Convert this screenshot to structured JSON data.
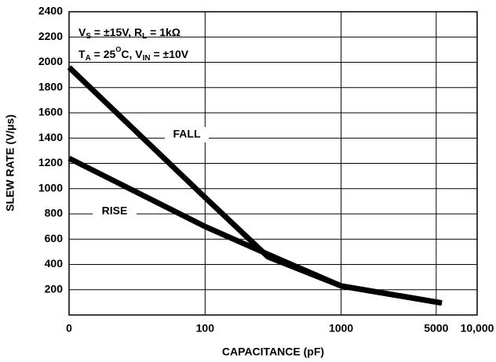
{
  "chart_data": {
    "type": "line",
    "x_label": "CAPACITANCE (pF)",
    "y_label": "SLEW RATE (V/µs)",
    "annotations": [
      [
        "V",
        "S",
        " = ±15V, R",
        "L",
        " = 1kΩ"
      ],
      [
        "T",
        "A",
        " = 25",
        "O",
        "C, V",
        "IN",
        " = ±10V"
      ]
    ],
    "x": [
      10,
      100,
      290,
      1000,
      5500
    ],
    "series": [
      {
        "name": "FALL",
        "color": "#000000",
        "values": [
          1960,
          930,
          460,
          230,
          95
        ]
      },
      {
        "name": "RISE",
        "color": "#000000",
        "values": [
          1240,
          700,
          480,
          230,
          95
        ]
      }
    ],
    "xlog": true,
    "xlim": [
      10,
      10000
    ],
    "xticks": [
      {
        "value": 10,
        "label": "0"
      },
      100,
      1000,
      5000,
      {
        "value": 10000,
        "label": "10,000"
      }
    ],
    "ylim": [
      0,
      2400
    ],
    "yticks": [
      200,
      400,
      600,
      800,
      1000,
      1200,
      1400,
      1600,
      1800,
      2000,
      2200,
      2400
    ],
    "grid": true
  }
}
